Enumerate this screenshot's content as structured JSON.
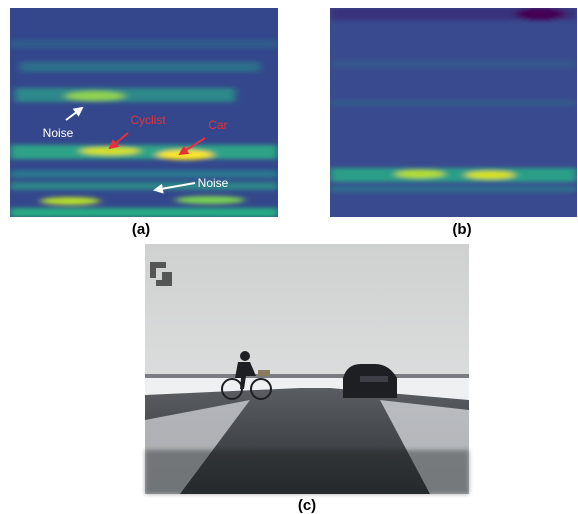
{
  "panels": [
    {
      "label": "(a)",
      "annotations": [
        {
          "text": "Noise"
        },
        {
          "text": "Cyclist"
        },
        {
          "text": "Car"
        },
        {
          "text": "Noise"
        }
      ]
    },
    {
      "label": "(b)"
    },
    {
      "label": "(c)"
    }
  ]
}
